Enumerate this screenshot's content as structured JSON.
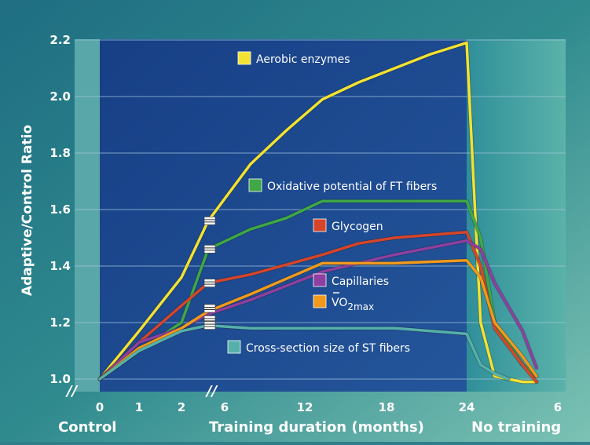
{
  "chart_data": {
    "type": "line",
    "title": "",
    "ylabel": "Adaptive/Control Ratio",
    "xlabel": "Training duration (months)",
    "ylim": [
      1.0,
      2.2
    ],
    "yticks": [
      "1.0",
      "1.2",
      "1.4",
      "1.6",
      "1.8",
      "2.0",
      "2.2"
    ],
    "grid": true,
    "x_tick_labels": [
      "0",
      "1",
      "2",
      "6",
      "12",
      "18",
      "24",
      "6"
    ],
    "sections": [
      "Control",
      "Training duration (months)",
      "No training"
    ],
    "axis_break_marks": [
      "//",
      "//"
    ],
    "legend_placement": "inline labels",
    "colors": {
      "background_outer": "#2f7f8a",
      "panel_training": "#1d4a8e",
      "panel_control": "#5aa7a9",
      "panel_detraining": "#3e9ea3",
      "grid": "#9fc5dc",
      "text": "#ffffff"
    },
    "series": [
      {
        "name": "Aerobic enzymes",
        "color": "#f2e233",
        "points": [
          [
            "0",
            1.0
          ],
          [
            "1",
            1.17
          ],
          [
            "2",
            1.36
          ],
          [
            "2.5",
            1.56
          ],
          [
            "6",
            1.76
          ],
          [
            "9",
            1.88
          ],
          [
            "12",
            1.99
          ],
          [
            "15",
            2.05
          ],
          [
            "18",
            2.1
          ],
          [
            "21",
            2.15
          ],
          [
            "24",
            2.19
          ],
          [
            "1",
            1.2
          ],
          [
            "2",
            1.01
          ],
          [
            "4",
            0.99
          ],
          [
            "5",
            0.99
          ]
        ]
      },
      {
        "name": "Oxidative potential of FT fibers",
        "color": "#3fa845",
        "points": [
          [
            "0",
            1.0
          ],
          [
            "1",
            1.1
          ],
          [
            "2",
            1.2
          ],
          [
            "2.5",
            1.46
          ],
          [
            "6",
            1.53
          ],
          [
            "9",
            1.57
          ],
          [
            "12",
            1.63
          ],
          [
            "18",
            1.63
          ],
          [
            "24",
            1.63
          ],
          [
            "1",
            1.5
          ],
          [
            "2",
            1.2
          ],
          [
            "4",
            1.05
          ],
          [
            "5",
            1.01
          ]
        ]
      },
      {
        "name": "Glycogen",
        "color": "#d6452a",
        "points": [
          [
            "0",
            1.0
          ],
          [
            "1",
            1.13
          ],
          [
            "2",
            1.26
          ],
          [
            "2.5",
            1.34
          ],
          [
            "6",
            1.37
          ],
          [
            "12",
            1.44
          ],
          [
            "15",
            1.48
          ],
          [
            "18",
            1.5
          ],
          [
            "24",
            1.52
          ],
          [
            "1",
            1.4
          ],
          [
            "2",
            1.18
          ],
          [
            "4",
            1.05
          ],
          [
            "5",
            0.99
          ]
        ]
      },
      {
        "name": "Capillaries",
        "color": "#8e3fa0",
        "points": [
          [
            "0",
            1.0
          ],
          [
            "1",
            1.13
          ],
          [
            "2",
            1.18
          ],
          [
            "2.5",
            1.23
          ],
          [
            "6",
            1.28
          ],
          [
            "12",
            1.38
          ],
          [
            "18",
            1.44
          ],
          [
            "24",
            1.49
          ],
          [
            "1",
            1.46
          ],
          [
            "2",
            1.34
          ],
          [
            "4",
            1.17
          ],
          [
            "5",
            1.04
          ]
        ]
      },
      {
        "name": "VO2max",
        "color": "#f19a1b",
        "points": [
          [
            "0",
            1.0
          ],
          [
            "1",
            1.11
          ],
          [
            "2",
            1.18
          ],
          [
            "2.5",
            1.24
          ],
          [
            "6",
            1.3
          ],
          [
            "12",
            1.41
          ],
          [
            "18",
            1.41
          ],
          [
            "24",
            1.42
          ],
          [
            "1",
            1.36
          ],
          [
            "2",
            1.2
          ],
          [
            "4",
            1.08
          ],
          [
            "5",
            1.01
          ]
        ]
      },
      {
        "name": "Cross-section size of ST fibers",
        "color": "#55b0a9",
        "points": [
          [
            "0",
            1.0
          ],
          [
            "1",
            1.1
          ],
          [
            "2",
            1.17
          ],
          [
            "2.5",
            1.19
          ],
          [
            "6",
            1.18
          ],
          [
            "12",
            1.18
          ],
          [
            "18",
            1.18
          ],
          [
            "24",
            1.16
          ],
          [
            "1",
            1.05
          ],
          [
            "2",
            1.02
          ],
          [
            "3",
            1.0
          ]
        ]
      }
    ],
    "labels": {
      "aerobic": "Aerobic enzymes",
      "oxidative": "Oxidative potential of FT fibers",
      "glycogen": "Glycogen",
      "capillaries": "Capillaries",
      "vo2_main": "VO",
      "vo2_sub": "2max",
      "st_fibers": "Cross-section size of ST fibers"
    }
  }
}
